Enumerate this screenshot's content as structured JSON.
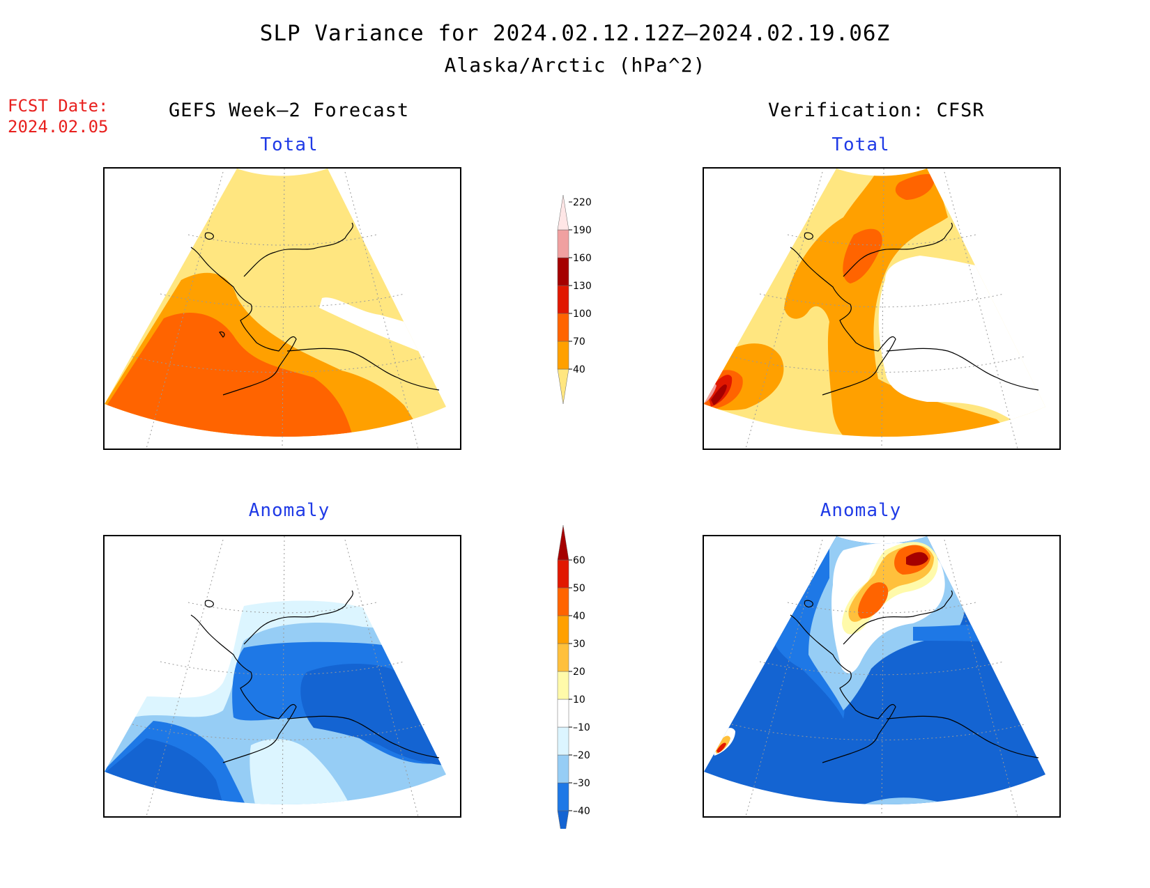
{
  "title": "SLP Variance for 2024.02.12.12Z–2024.02.19.06Z",
  "subtitle": "Alaska/Arctic (hPa^2)",
  "forecast_date": {
    "label": "FCST Date:",
    "value": "2024.02.05"
  },
  "columns": [
    {
      "heading": "GEFS Week–2 Forecast"
    },
    {
      "heading": "Verification: CFSR"
    }
  ],
  "panels": [
    {
      "id": "forecast-total",
      "title": "Total"
    },
    {
      "id": "verification-total",
      "title": "Total"
    },
    {
      "id": "forecast-anomaly",
      "title": "Anomaly"
    },
    {
      "id": "verification-anomaly",
      "title": "Anomaly"
    }
  ],
  "legends": {
    "total": {
      "levels": [
        "40",
        "70",
        "100",
        "130",
        "160",
        "190",
        "220"
      ],
      "colors": [
        "#ffe680",
        "#ffa000",
        "#ff6400",
        "#e11800",
        "#a50000",
        "#f0a0a0",
        "#ffe6e6"
      ]
    },
    "anomaly": {
      "levels": [
        "–40",
        "–30",
        "–20",
        "–10",
        "10",
        "20",
        "30",
        "40",
        "50",
        "60"
      ],
      "colors": [
        "#1464d2",
        "#1e78e6",
        "#96cdf5",
        "#dcf5ff",
        "#ffffff",
        "#fffaaa",
        "#ffc03c",
        "#ffa000",
        "#ff6400",
        "#e11800",
        "#a50000"
      ]
    }
  }
}
